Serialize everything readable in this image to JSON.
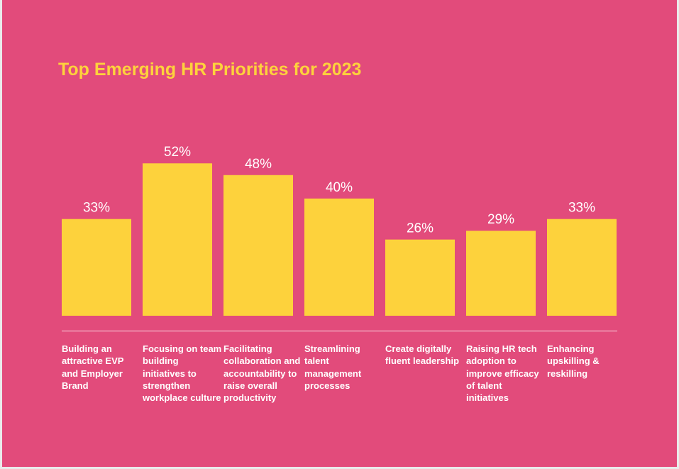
{
  "chart_data": {
    "type": "bar",
    "title": "Top Emerging HR Priorities for 2023",
    "xlabel": "",
    "ylabel": "",
    "ylim": [
      0,
      100
    ],
    "grid": false,
    "legend": "none",
    "categories": [
      "Building an attractive EVP and Employer Brand",
      "Focusing on team building initiatives to strengthen workplace culture",
      "Facilitating collaboration and accountability to raise overall productivity",
      "Streamlining talent management processes",
      "Create digitally fluent leadership",
      "Raising HR tech adoption to improve efficacy of talent initiatives",
      "Enhancing upskilling & reskilling"
    ],
    "values": [
      33,
      52,
      48,
      40,
      26,
      29,
      33
    ],
    "value_labels": [
      "33%",
      "52%",
      "48%",
      "40%",
      "26%",
      "29%",
      "33%"
    ]
  },
  "colors": {
    "background": "#e24b7b",
    "bar": "#fdd23c",
    "title": "#fdd23c",
    "label": "#ffffff"
  }
}
